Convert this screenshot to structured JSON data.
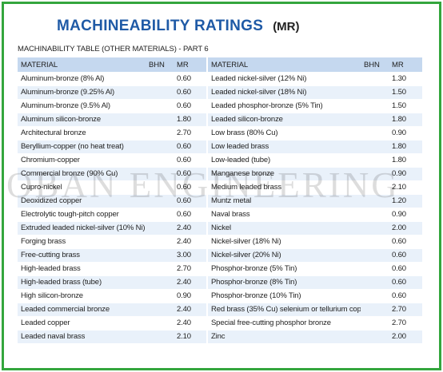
{
  "title": "MACHINEABILITY RATINGS",
  "title_abbr": "(MR)",
  "subtitle": "MACHINABILITY TABLE (OTHER MATERIALS) - PART 6",
  "watermark": "OBAN ENGINEERING",
  "colors": {
    "border": "#34a63d",
    "title": "#1f5aa6",
    "header_bg": "#c5d8ef",
    "stripe": "#e9f1fa"
  },
  "headers": {
    "material": "MATERIAL",
    "bhn": "BHN",
    "mr": "MR",
    "material2": "MATERIAL",
    "bhn2": "BHN",
    "mr2": "MR"
  },
  "rows": [
    {
      "m1": "Aluminum-bronze (8% Al)",
      "b1": "",
      "r1": "0.60",
      "m2": "Leaded nickel-silver (12% Ni)",
      "b2": "",
      "r2": "1.30"
    },
    {
      "m1": "Aluminum-bronze (9.25% Al)",
      "b1": "",
      "r1": "0.60",
      "m2": "Leaded nickel-silver (18% Ni)",
      "b2": "",
      "r2": "1.50"
    },
    {
      "m1": "Aluminum-bronze (9.5% Al)",
      "b1": "",
      "r1": "0.60",
      "m2": "Leaded phosphor-bronze (5% Tin)",
      "b2": "",
      "r2": "1.50"
    },
    {
      "m1": "Aluminum silicon-bronze",
      "b1": "",
      "r1": "1.80",
      "m2": "Leaded silicon-bronze",
      "b2": "",
      "r2": "1.80"
    },
    {
      "m1": "Architectural bronze",
      "b1": "",
      "r1": "2.70",
      "m2": "Low brass (80% Cu)",
      "b2": "",
      "r2": "0.90"
    },
    {
      "m1": "Beryllium-copper (no heat treat)",
      "b1": "",
      "r1": "0.60",
      "m2": "Low leaded brass",
      "b2": "",
      "r2": "1.80"
    },
    {
      "m1": "Chromium-copper",
      "b1": "",
      "r1": "0.60",
      "m2": "Low-leaded (tube)",
      "b2": "",
      "r2": "1.80"
    },
    {
      "m1": "Commercial bronze (90% Cu)",
      "b1": "",
      "r1": "0.60",
      "m2": "Manganese bronze",
      "b2": "",
      "r2": "0.90"
    },
    {
      "m1": "Cupro-nickel",
      "b1": "",
      "r1": "0.60",
      "m2": "Medium leaded brass",
      "b2": "",
      "r2": "2.10"
    },
    {
      "m1": "Deoxidized copper",
      "b1": "",
      "r1": "0.60",
      "m2": "Muntz metal",
      "b2": "",
      "r2": "1.20"
    },
    {
      "m1": "Electrolytic tough-pitch copper",
      "b1": "",
      "r1": "0.60",
      "m2": "Naval brass",
      "b2": "",
      "r2": "0.90"
    },
    {
      "m1": "Extruded leaded nickel-silver (10% Ni)",
      "b1": "",
      "r1": "2.40",
      "m2": "Nickel",
      "b2": "",
      "r2": "2.00"
    },
    {
      "m1": "Forging brass",
      "b1": "",
      "r1": "2.40",
      "m2": "Nickel-silver (18% Ni)",
      "b2": "",
      "r2": "0.60"
    },
    {
      "m1": "Free-cutting brass",
      "b1": "",
      "r1": "3.00",
      "m2": "Nickel-silver (20% Ni)",
      "b2": "",
      "r2": "0.60"
    },
    {
      "m1": "High-leaded brass",
      "b1": "",
      "r1": "2.70",
      "m2": "Phosphor-bronze (5% Tin)",
      "b2": "",
      "r2": "0.60"
    },
    {
      "m1": "High-leaded brass (tube)",
      "b1": "",
      "r1": "2.40",
      "m2": "Phosphor-bronze (8% Tin)",
      "b2": "",
      "r2": "0.60"
    },
    {
      "m1": "High silicon-bronze",
      "b1": "",
      "r1": "0.90",
      "m2": "Phosphor-bronze (10% Tin)",
      "b2": "",
      "r2": "0.60"
    },
    {
      "m1": "Leaded commercial bronze",
      "b1": "",
      "r1": "2.40",
      "m2": "Red brass (35% Cu) selenium or tellurium copper",
      "b2": "",
      "r2": "2.70"
    },
    {
      "m1": "Leaded copper",
      "b1": "",
      "r1": "2.40",
      "m2": "Special free-cutting phosphor bronze",
      "b2": "",
      "r2": "2.70"
    },
    {
      "m1": "Leaded naval brass",
      "b1": "",
      "r1": "2.10",
      "m2": "Zinc",
      "b2": "",
      "r2": "2.00"
    }
  ]
}
